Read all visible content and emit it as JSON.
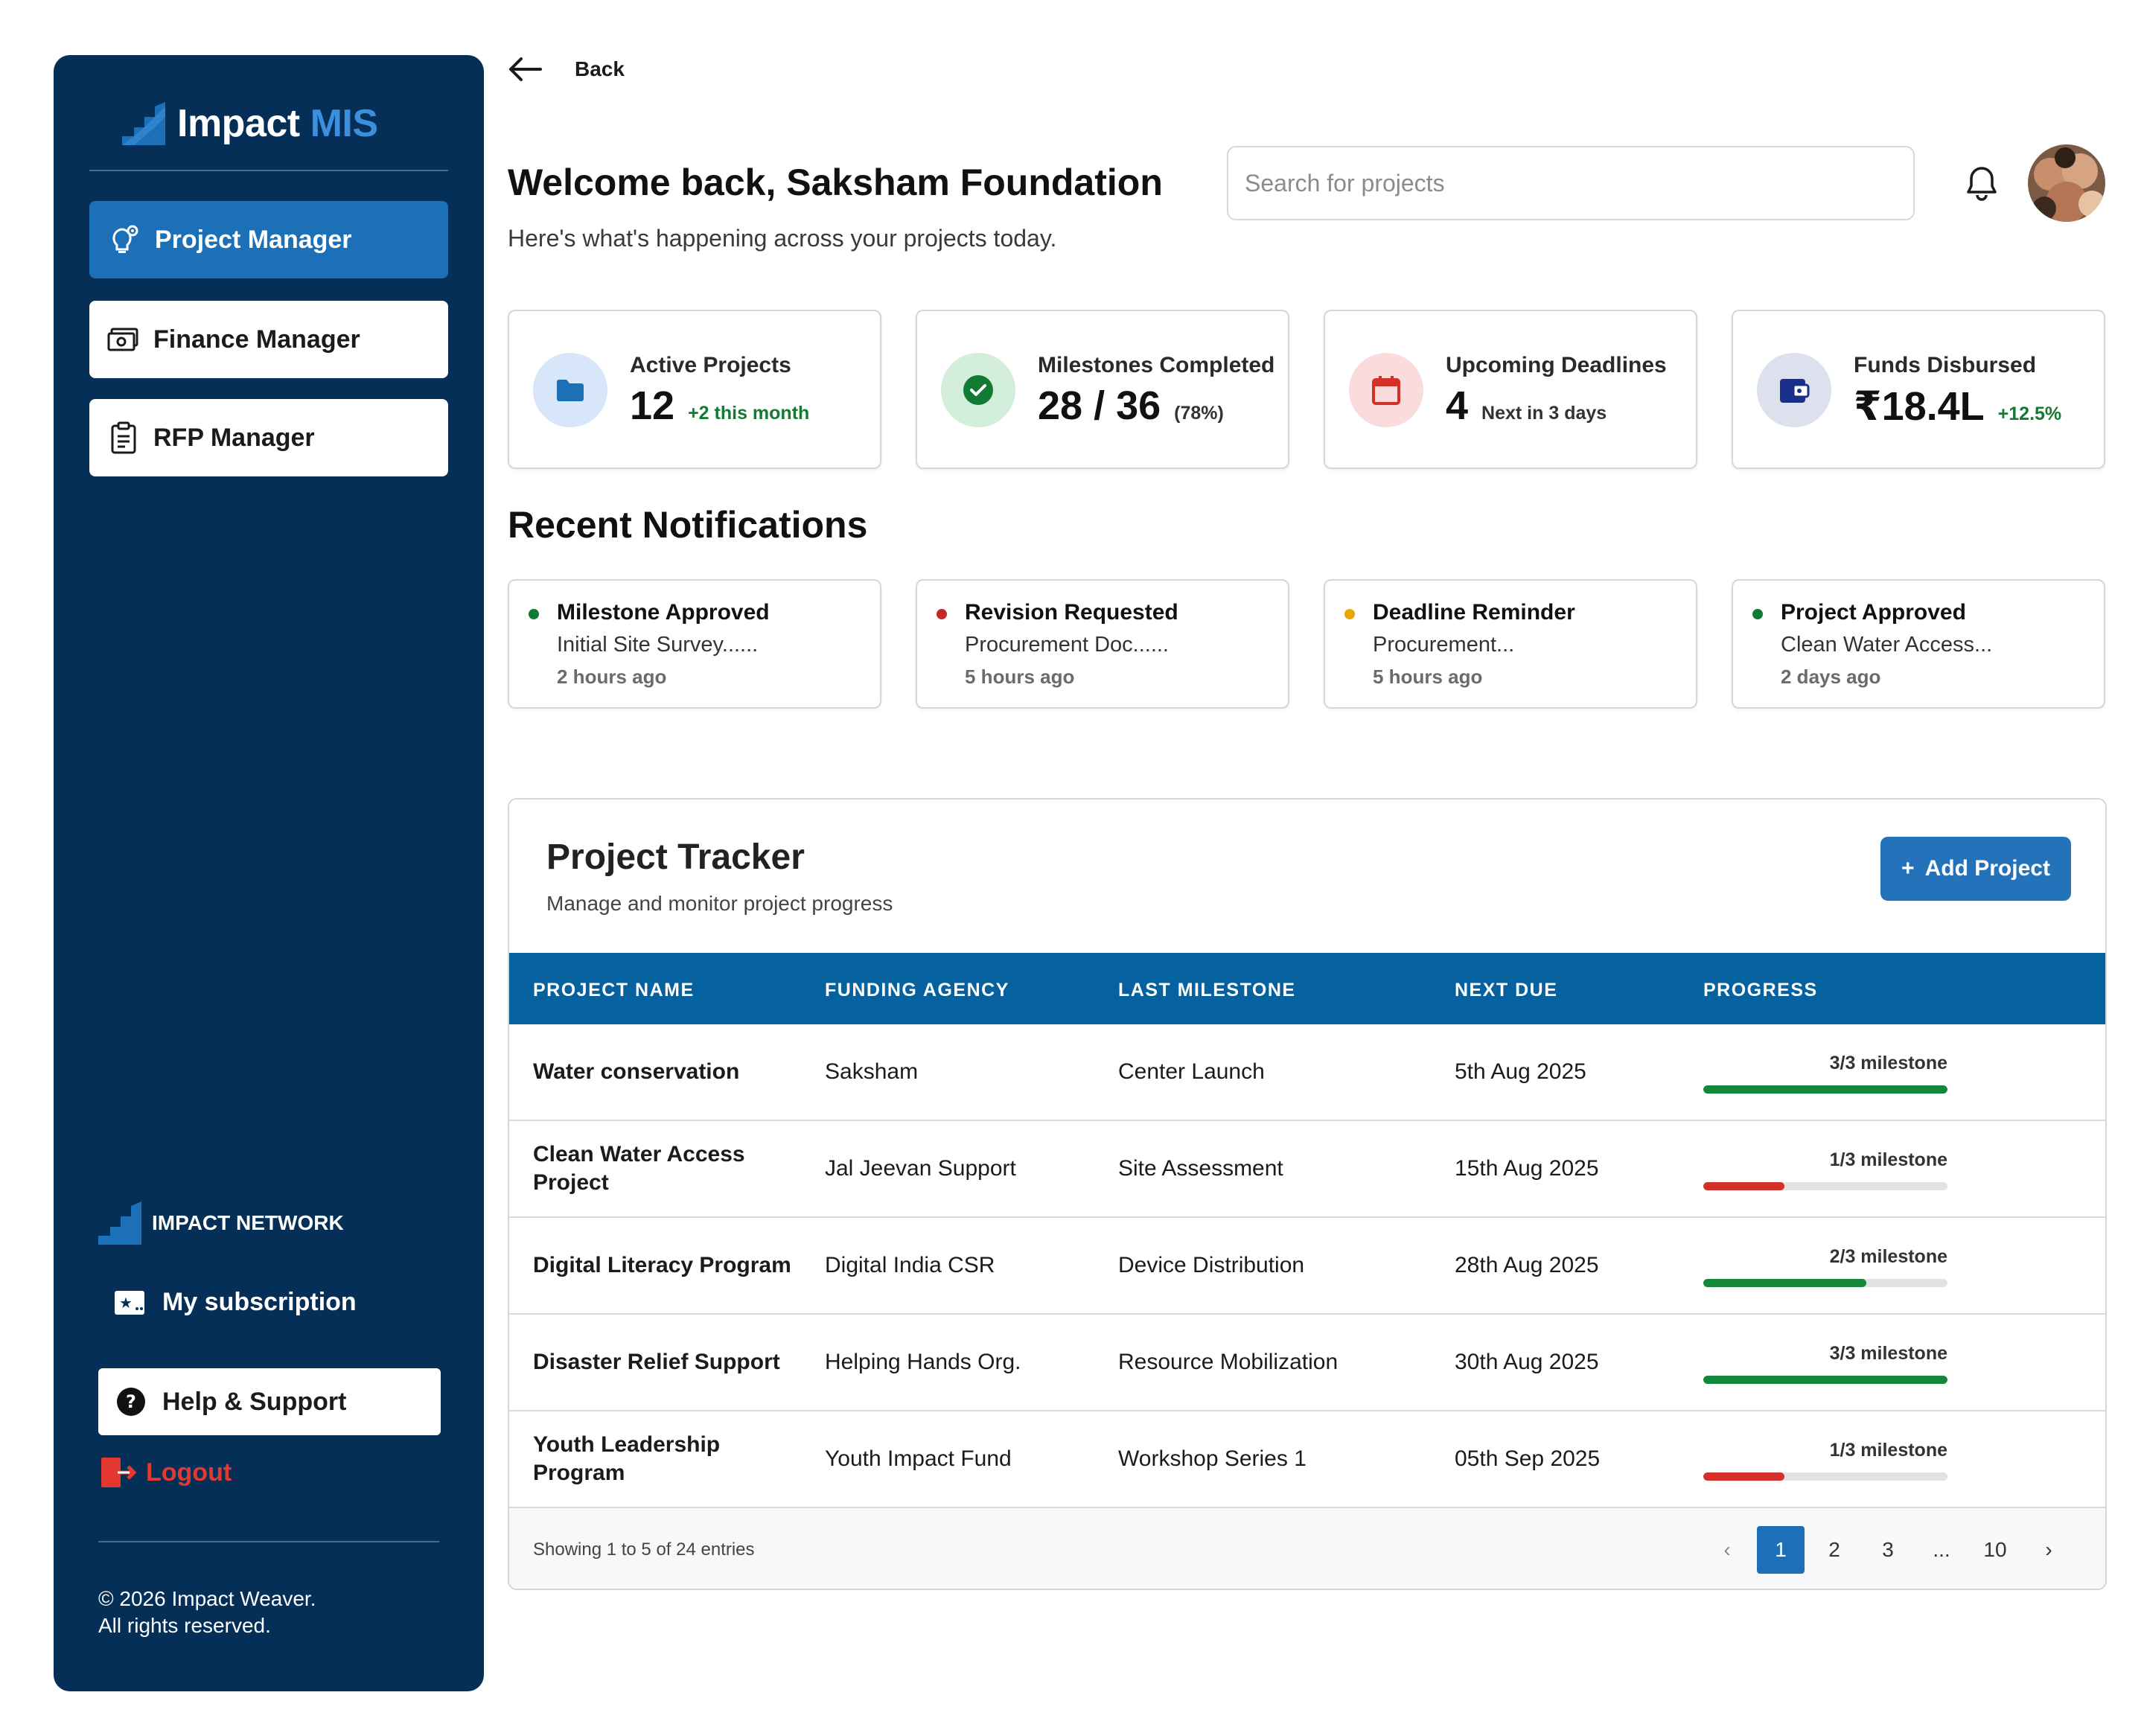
{
  "brand": {
    "name": "Impact",
    "accent": "MIS",
    "accent_color": "#3b8fdc"
  },
  "sidebar": {
    "items": [
      {
        "label": "Project Manager",
        "icon": "lightbulb-gear-icon",
        "active": true
      },
      {
        "label": "Finance Manager",
        "icon": "money-icon",
        "active": false
      },
      {
        "label": "RFP  Manager",
        "icon": "clipboard-icon",
        "active": false
      }
    ],
    "network_label": "IMPACT NETWORK",
    "subscription_label": "My subscription",
    "help_label": "Help & Support",
    "logout_label": "Logout",
    "copyright_line1": "© 2026 Impact Weaver.",
    "copyright_line2": "All rights reserved."
  },
  "header": {
    "back_label": "Back",
    "welcome": "Welcome back, Saksham Foundation",
    "subtitle": "Here's what's happening across your projects today.",
    "search_placeholder": "Search for projects"
  },
  "stats": [
    {
      "label": "Active Projects",
      "value": "12",
      "sub": "+2 this month",
      "icon": "folder-icon"
    },
    {
      "label": "Milestones Completed",
      "value": "28 / 36",
      "sub": "(78%)",
      "icon": "check-circle-icon"
    },
    {
      "label": "Upcoming Deadlines",
      "value": "4",
      "sub": "Next in 3 days",
      "icon": "calendar-icon"
    },
    {
      "label": "Funds Disbursed",
      "value": "₹18.4L",
      "sub": "+12.5%",
      "icon": "wallet-icon"
    }
  ],
  "notifications_title": "Recent Notifications",
  "notifications": [
    {
      "title": "Milestone Approved",
      "desc": "Initial Site Survey......",
      "time": "2 hours ago",
      "color": "#137a33"
    },
    {
      "title": "Revision Requested",
      "desc": "Procurement Doc......",
      "time": "5 hours ago",
      "color": "#c62828"
    },
    {
      "title": "Deadline Reminder",
      "desc": "Procurement...",
      "time": "5 hours ago",
      "color": "#e6a700"
    },
    {
      "title": "Project Approved",
      "desc": "Clean Water Access...",
      "time": "2 days ago",
      "color": "#137a33"
    }
  ],
  "tracker": {
    "title": "Project Tracker",
    "subtitle": "Manage and monitor project progress",
    "add_label": "Add Project",
    "columns": [
      "PROJECT NAME",
      "FUNDING AGENCY",
      "LAST MILESTONE",
      "NEXT DUE",
      "PROGRESS"
    ],
    "rows": [
      {
        "name": "Water conservation",
        "agency": "Saksham",
        "milestone": "Center Launch",
        "due": "5th Aug 2025",
        "progress_label": "3/3 milestone",
        "progress": 1.0,
        "color": "#14873a"
      },
      {
        "name": "Clean Water Access Project",
        "agency": "Jal Jeevan Support",
        "milestone": "Site Assessment",
        "due": "15th Aug 2025",
        "progress_label": "1/3 milestone",
        "progress": 0.333,
        "color": "#d3302a"
      },
      {
        "name": "Digital Literacy Program",
        "agency": "Digital India CSR",
        "milestone": "Device Distribution",
        "due": "28th Aug 2025",
        "progress_label": "2/3 milestone",
        "progress": 0.667,
        "color": "#14873a"
      },
      {
        "name": "Disaster Relief Support",
        "agency": "Helping Hands Org.",
        "milestone": "Resource Mobilization",
        "due": "30th Aug 2025",
        "progress_label": "3/3 milestone",
        "progress": 1.0,
        "color": "#14873a"
      },
      {
        "name": "Youth Leadership Program",
        "agency": "Youth Impact Fund",
        "milestone": "Workshop Series 1",
        "due": "05th Sep 2025",
        "progress_label": "1/3 milestone",
        "progress": 0.333,
        "color": "#d3302a"
      }
    ],
    "showing": "Showing 1 to 5 of 24 entries",
    "pages": [
      "1",
      "2",
      "3",
      "...",
      "10"
    ]
  }
}
